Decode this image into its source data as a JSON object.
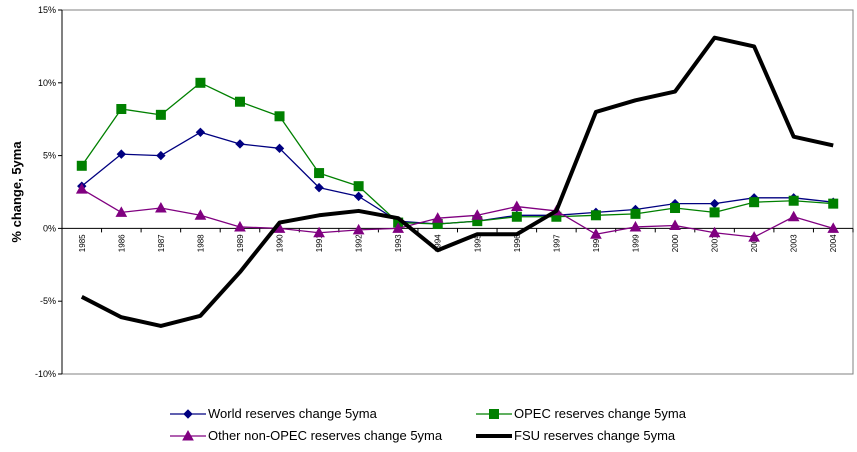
{
  "chart_data": {
    "type": "line",
    "title": "",
    "xlabel": "",
    "ylabel": "% change, 5yma",
    "ylim": [
      -0.1,
      0.15
    ],
    "yticks": [
      {
        "value": -0.1,
        "label": "-10%"
      },
      {
        "value": -0.05,
        "label": "-5%"
      },
      {
        "value": 0.0,
        "label": "0%"
      },
      {
        "value": 0.05,
        "label": "5%"
      },
      {
        "value": 0.1,
        "label": "10%"
      },
      {
        "value": 0.15,
        "label": "15%"
      }
    ],
    "grid": false,
    "legend_position": "bottom",
    "categories": [
      "1985",
      "1986",
      "1987",
      "1988",
      "1989",
      "1990",
      "1991",
      "1992",
      "1993",
      "1994",
      "1995",
      "1996",
      "1997",
      "1998",
      "1999",
      "2000",
      "2001",
      "2002",
      "2003",
      "2004"
    ],
    "series": [
      {
        "name": "World reserves change 5yma",
        "color": "#000080",
        "marker": "diamond",
        "values": [
          0.029,
          0.051,
          0.05,
          0.066,
          0.058,
          0.055,
          0.028,
          0.022,
          0.005,
          0.003,
          0.005,
          0.009,
          0.009,
          0.011,
          0.013,
          0.017,
          0.017,
          0.021,
          0.021,
          0.018
        ]
      },
      {
        "name": "OPEC reserves change 5yma",
        "color": "#008000",
        "marker": "square",
        "values": [
          0.043,
          0.082,
          0.078,
          0.1,
          0.087,
          0.077,
          0.038,
          0.029,
          0.004,
          0.003,
          0.005,
          0.008,
          0.008,
          0.009,
          0.01,
          0.014,
          0.011,
          0.018,
          0.019,
          0.017
        ]
      },
      {
        "name": "Other non-OPEC reserves change 5yma",
        "color": "#800080",
        "marker": "triangle",
        "values": [
          0.027,
          0.011,
          0.014,
          0.009,
          0.001,
          0.0,
          -0.003,
          -0.001,
          0.0,
          0.007,
          0.009,
          0.015,
          0.012,
          -0.004,
          0.001,
          0.002,
          -0.003,
          -0.006,
          0.008,
          0.0
        ]
      },
      {
        "name": "FSU reserves change 5yma",
        "color": "#000000",
        "marker": "none",
        "values": [
          -0.047,
          -0.061,
          -0.067,
          -0.06,
          -0.03,
          0.004,
          0.009,
          0.012,
          0.007,
          -0.015,
          -0.004,
          -0.004,
          0.012,
          0.08,
          0.088,
          0.094,
          0.131,
          0.125,
          0.063,
          0.057
        ]
      }
    ]
  }
}
